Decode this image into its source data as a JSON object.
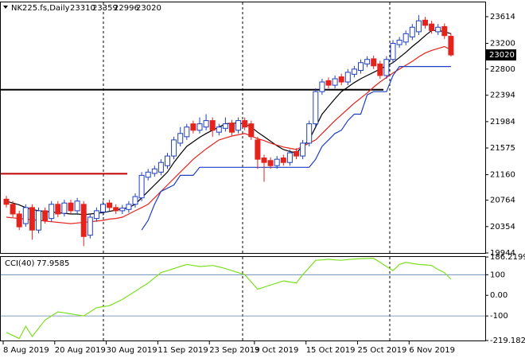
{
  "chart_data": [
    {
      "type": "candlestick",
      "title": "NK225.fs,Daily",
      "categories": [
        "8 Aug 2019",
        null,
        null,
        null,
        null,
        null,
        null,
        null,
        "20 Aug 2019",
        null,
        null,
        null,
        null,
        null,
        null,
        null,
        "30 Aug 2019",
        null,
        null,
        null,
        null,
        null,
        null,
        null,
        "11 Sep 2019",
        null,
        null,
        null,
        null,
        null,
        null,
        null,
        "23 Sep 2019",
        null,
        null,
        null,
        null,
        null,
        null,
        "3 Oct 2019",
        null,
        null,
        null,
        null,
        null,
        null,
        null,
        "15 Oct 2019",
        null,
        null,
        null,
        null,
        null,
        null,
        null,
        "25 Oct 2019",
        null,
        null,
        null,
        null,
        null,
        null,
        null,
        "6 Nov 2019",
        null,
        null,
        null,
        null,
        null,
        null
      ],
      "open": [
        20780,
        20700,
        20550,
        20400,
        20650,
        20300,
        20600,
        20480,
        20700,
        20560,
        20720,
        20600,
        20700,
        20220,
        20480,
        20580,
        20720,
        20650,
        20600,
        20620,
        20700,
        20800,
        21120,
        21180,
        21200,
        21300,
        21450,
        21650,
        21750,
        21950,
        21850,
        21900,
        22000,
        21820,
        21880,
        21960,
        21850,
        22000,
        21950,
        21700,
        21420,
        21380,
        21300,
        21420,
        21350,
        21520,
        21450,
        21650,
        21950,
        22450,
        22620,
        22550,
        22680,
        22600,
        22720,
        22780,
        22880,
        22960,
        22880,
        22700,
        22950,
        23180,
        23220,
        23300,
        23380,
        23560,
        23500,
        23380,
        23460,
        23310
      ],
      "high": [
        20830,
        20750,
        20600,
        20700,
        20700,
        20650,
        20650,
        20750,
        20750,
        20770,
        20770,
        20800,
        20750,
        20550,
        20650,
        20750,
        20770,
        20700,
        20690,
        20750,
        20870,
        21200,
        21250,
        21300,
        21400,
        21500,
        21750,
        21900,
        21950,
        22000,
        22050,
        22100,
        22050,
        21950,
        22050,
        22010,
        22050,
        22050,
        22000,
        21750,
        21470,
        21430,
        21450,
        21470,
        21550,
        21570,
        21700,
        22000,
        22500,
        22650,
        22670,
        22700,
        22730,
        22800,
        22850,
        22950,
        23000,
        23010,
        22930,
        23000,
        23250,
        23300,
        23400,
        23500,
        23640,
        23610,
        23550,
        23500,
        23510,
        23359
      ],
      "low": [
        20650,
        20500,
        20300,
        20350,
        20150,
        20250,
        20400,
        20430,
        20500,
        20510,
        20550,
        20550,
        20050,
        20170,
        20430,
        20530,
        20600,
        20550,
        20550,
        20570,
        20650,
        20750,
        21070,
        21130,
        21150,
        21250,
        21400,
        21600,
        21700,
        21800,
        21800,
        21850,
        21750,
        21770,
        21830,
        21770,
        21800,
        21850,
        21700,
        21250,
        21050,
        21250,
        21250,
        21300,
        21300,
        21400,
        21400,
        21600,
        21900,
        22400,
        22500,
        22500,
        22550,
        22550,
        22670,
        22730,
        22830,
        22800,
        22650,
        22650,
        22900,
        23130,
        23170,
        23250,
        23330,
        23430,
        23350,
        23330,
        23270,
        22996
      ],
      "close": [
        20700,
        20550,
        20350,
        20650,
        20300,
        20600,
        20450,
        20700,
        20550,
        20720,
        20600,
        20750,
        20200,
        20500,
        20600,
        20700,
        20650,
        20600,
        20640,
        20700,
        20820,
        21150,
        21200,
        21250,
        21350,
        21450,
        21700,
        21800,
        21900,
        21850,
        21950,
        22000,
        21850,
        21900,
        21950,
        21820,
        22000,
        21900,
        21750,
        21400,
        21350,
        21300,
        21400,
        21350,
        21500,
        21450,
        21650,
        21950,
        22450,
        22600,
        22550,
        22650,
        22600,
        22750,
        22800,
        22900,
        22950,
        22850,
        22700,
        22950,
        23200,
        23250,
        23350,
        23450,
        23550,
        23480,
        23400,
        23450,
        23320,
        23020
      ],
      "up_color": "#1f3fc0",
      "down_color": "#e3231c",
      "lines": [
        {
          "color": "#000000",
          "values": [
            20750,
            20720,
            20690,
            20650,
            20620,
            20600,
            20590,
            20580,
            20570,
            20560,
            20550,
            20550,
            20540,
            20550,
            20560,
            20570,
            20590,
            20610,
            20630,
            20650,
            20700,
            20800,
            20900,
            21000,
            21100,
            21200,
            21350,
            21480,
            21600,
            21670,
            21740,
            21800,
            21850,
            21900,
            21950,
            21960,
            21960,
            21950,
            21900,
            21820,
            21750,
            21680,
            21610,
            21550,
            21520,
            21500,
            21600,
            21700,
            21900,
            22100,
            22220,
            22340,
            22450,
            22520,
            22590,
            22650,
            22700,
            22750,
            22800,
            22850,
            22900,
            22980,
            23060,
            23150,
            23230,
            23320,
            23400,
            23400,
            23380,
            23350
          ]
        },
        {
          "color": "#e3231c",
          "values": [
            20500,
            20490,
            20480,
            20470,
            20460,
            20450,
            20440,
            20430,
            20420,
            20410,
            20400,
            20410,
            20420,
            20430,
            20440,
            20450,
            20470,
            20480,
            20500,
            20550,
            20600,
            20650,
            20700,
            20800,
            20900,
            21000,
            21100,
            21200,
            21300,
            21400,
            21480,
            21560,
            21630,
            21700,
            21730,
            21760,
            21780,
            21800,
            21760,
            21720,
            21690,
            21650,
            21620,
            21590,
            21570,
            21550,
            21600,
            21650,
            21700,
            21800,
            21900,
            22000,
            22090,
            22180,
            22270,
            22350,
            22430,
            22520,
            22600,
            22670,
            22740,
            22800,
            22860,
            22920,
            22990,
            23050,
            23090,
            23120,
            23150,
            23100
          ]
        },
        {
          "color": "#1f3fc0",
          "values": [
            null,
            null,
            null,
            null,
            null,
            null,
            null,
            null,
            null,
            null,
            null,
            null,
            null,
            null,
            null,
            null,
            null,
            null,
            null,
            null,
            null,
            20300,
            20450,
            20700,
            20900,
            20950,
            21000,
            21150,
            21150,
            21150,
            21275,
            21275,
            21275,
            21275,
            21275,
            21275,
            21275,
            21275,
            21275,
            21275,
            21275,
            21275,
            21275,
            21275,
            21275,
            21275,
            21275,
            21275,
            21400,
            21600,
            21700,
            21800,
            21850,
            22000,
            22100,
            22100,
            22400,
            22450,
            22450,
            22450,
            22700,
            22840,
            22840,
            22840,
            22840,
            22840,
            22840,
            22840,
            22840,
            22840
          ]
        }
      ],
      "levels": [
        {
          "value": 21175,
          "color": "#c00000"
        },
        {
          "value": 22480,
          "color": "#000000"
        }
      ],
      "ylim": [
        19944,
        23836
      ],
      "yticks": [
        23614,
        23200,
        22800,
        22394,
        21984,
        21575,
        21160,
        20764,
        20354,
        19944
      ]
    },
    {
      "type": "line",
      "title": "CCI(40)",
      "series": [
        {
          "color": "#7ce020",
          "values": [
            -180,
            -195,
            -210,
            -150,
            -200,
            -160,
            -120,
            -100,
            -80,
            -85,
            -90,
            -95,
            -100,
            -80,
            -60,
            -55,
            -50,
            -35,
            -20,
            0,
            20,
            40,
            60,
            85,
            110,
            120,
            130,
            140,
            150,
            145,
            140,
            142,
            145,
            138,
            130,
            120,
            110,
            100,
            65,
            30,
            40,
            50,
            60,
            70,
            65,
            60,
            100,
            135,
            170,
            172,
            175,
            172,
            170,
            174,
            176,
            178,
            179,
            180,
            160,
            140,
            120,
            150,
            160,
            155,
            150,
            148,
            145,
            125,
            110,
            77.9585
          ]
        }
      ],
      "ylim": [
        -219.182,
        186.2199
      ],
      "yticks": [
        186.2199,
        100,
        {
          "value": 0,
          "label": "0.00"
        },
        -100,
        -219.182
      ]
    }
  ]
}
